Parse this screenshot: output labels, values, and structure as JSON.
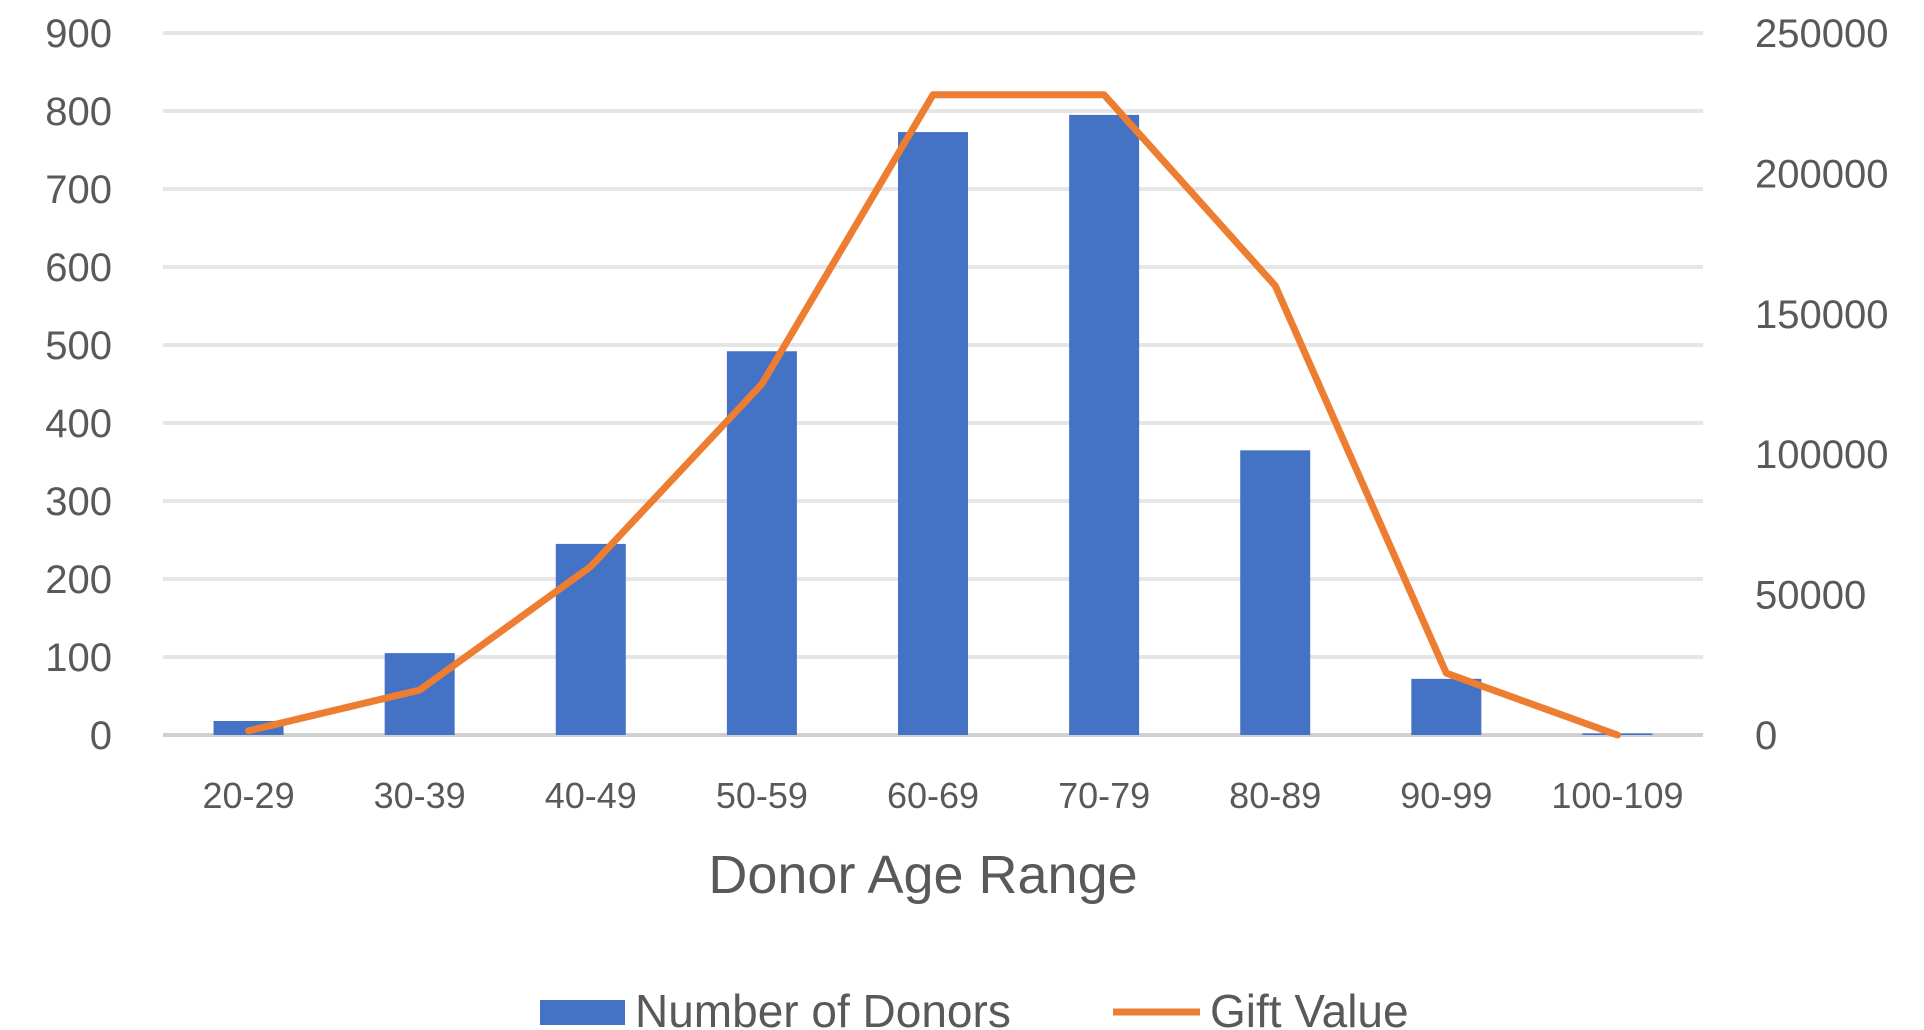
{
  "chart_data": {
    "type": "bar",
    "categories": [
      "20-29",
      "30-39",
      "40-49",
      "50-59",
      "60-69",
      "70-79",
      "80-89",
      "90-99",
      "100-109"
    ],
    "series": [
      {
        "name": "Number of Donors",
        "kind": "bar",
        "axis": "left",
        "color": "#4472C4",
        "values": [
          18,
          105,
          245,
          492,
          773,
          795,
          365,
          72,
          2
        ]
      },
      {
        "name": "Gift Value",
        "kind": "line",
        "axis": "right",
        "color": "#ED7D31",
        "values": [
          1500,
          16000,
          60000,
          125000,
          228000,
          228000,
          160000,
          22000,
          0
        ]
      }
    ],
    "xlabel": "Donor Age Range",
    "ylabel": "",
    "y2label": "",
    "ylim": [
      0,
      900
    ],
    "y2lim": [
      0,
      250000
    ],
    "yticks": [
      "0",
      "100",
      "200",
      "300",
      "400",
      "500",
      "600",
      "700",
      "800",
      "900"
    ],
    "y2ticks": [
      "0",
      "50000",
      "100000",
      "150000",
      "200000",
      "250000"
    ],
    "grid": true,
    "legend_position": "bottom"
  }
}
